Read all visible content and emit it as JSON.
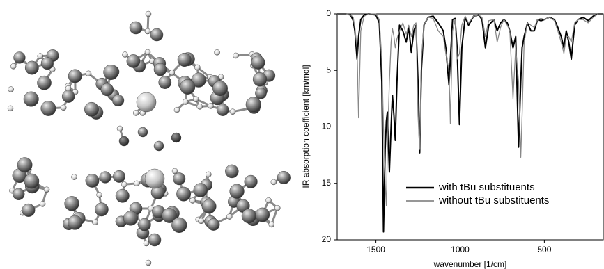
{
  "chart_data": {
    "type": "line",
    "xlabel": "wavenumber [1/cm]",
    "ylabel": "IR absorption coefficient [km/mol]",
    "xlim": [
      1730,
      150
    ],
    "xticks": [
      1500,
      1000,
      500
    ],
    "ylim": [
      0,
      20
    ],
    "yticks": [
      0,
      5,
      10,
      15,
      20
    ],
    "y_inverted": true,
    "legend": "lower center",
    "x": [
      1730,
      1680,
      1650,
      1635,
      1625,
      1612,
      1603,
      1590,
      1570,
      1540,
      1500,
      1480,
      1465,
      1455,
      1445,
      1438,
      1432,
      1420,
      1410,
      1402,
      1393,
      1385,
      1375,
      1360,
      1340,
      1320,
      1305,
      1290,
      1275,
      1262,
      1250,
      1240,
      1230,
      1215,
      1190,
      1160,
      1130,
      1100,
      1085,
      1066,
      1058,
      1045,
      1030,
      1018,
      1004,
      990,
      970,
      950,
      920,
      890,
      870,
      850,
      830,
      800,
      780,
      760,
      740,
      720,
      705,
      686,
      670,
      653,
      640,
      632,
      620,
      600,
      580,
      560,
      540,
      520,
      500,
      470,
      440,
      420,
      400,
      384,
      370,
      355,
      340,
      320,
      300,
      270,
      240,
      210,
      180,
      150
    ],
    "series": [
      {
        "name": "with tBu substituents",
        "color": "#000000",
        "width": 2,
        "values": [
          0,
          0,
          0.1,
          0.6,
          1.5,
          4.0,
          2.0,
          0.5,
          0.1,
          0,
          0.1,
          0.8,
          6,
          19.3,
          12,
          9.5,
          8.7,
          14,
          10,
          7.2,
          9,
          11.2,
          6,
          1.0,
          1.5,
          2.5,
          1.2,
          3.4,
          1.5,
          1.0,
          6,
          12.3,
          5,
          1.0,
          0.3,
          0.2,
          0.8,
          1.5,
          3,
          6.3,
          4,
          0.5,
          0.4,
          3,
          9.8,
          3,
          0.3,
          1.0,
          0.2,
          0.1,
          0.5,
          3.0,
          1.0,
          0.5,
          1.5,
          0.8,
          0.5,
          0.8,
          1.5,
          3,
          2,
          11.8,
          6,
          3,
          2.0,
          0.8,
          1.5,
          1.5,
          0.5,
          0.6,
          0.5,
          0.3,
          0.5,
          1.2,
          2.0,
          3,
          1.5,
          2.5,
          4.0,
          1.0,
          0.5,
          0.3,
          0.6,
          0.2,
          0,
          0
        ]
      },
      {
        "name": "without tBu substituents",
        "color": "#888888",
        "width": 1.3,
        "values": [
          0,
          0,
          0.1,
          0.3,
          1.2,
          3.0,
          9.2,
          1.5,
          0.2,
          0,
          0,
          0.5,
          4,
          10,
          15,
          17,
          12,
          6,
          2.5,
          1.3,
          2,
          3.0,
          2.2,
          1.5,
          0.8,
          1.8,
          1.0,
          2.0,
          1.0,
          0.8,
          9,
          12,
          4,
          1.0,
          0.3,
          0.4,
          1.5,
          2.0,
          3.5,
          5,
          9.7,
          1.5,
          0.5,
          4.0,
          3.5,
          1,
          0.2,
          0.8,
          0.2,
          0.1,
          0.3,
          2.0,
          0.6,
          0.5,
          2.5,
          1.2,
          0.5,
          1.0,
          1.5,
          7.5,
          3,
          6,
          12.7,
          9,
          2.5,
          0.8,
          1.0,
          1.2,
          0.5,
          0.4,
          0.5,
          0.3,
          0.6,
          1.5,
          2.5,
          3.5,
          2.0,
          2.0,
          2.5,
          0.8,
          0.5,
          0.5,
          0.8,
          0.3,
          0,
          0
        ]
      }
    ]
  }
}
